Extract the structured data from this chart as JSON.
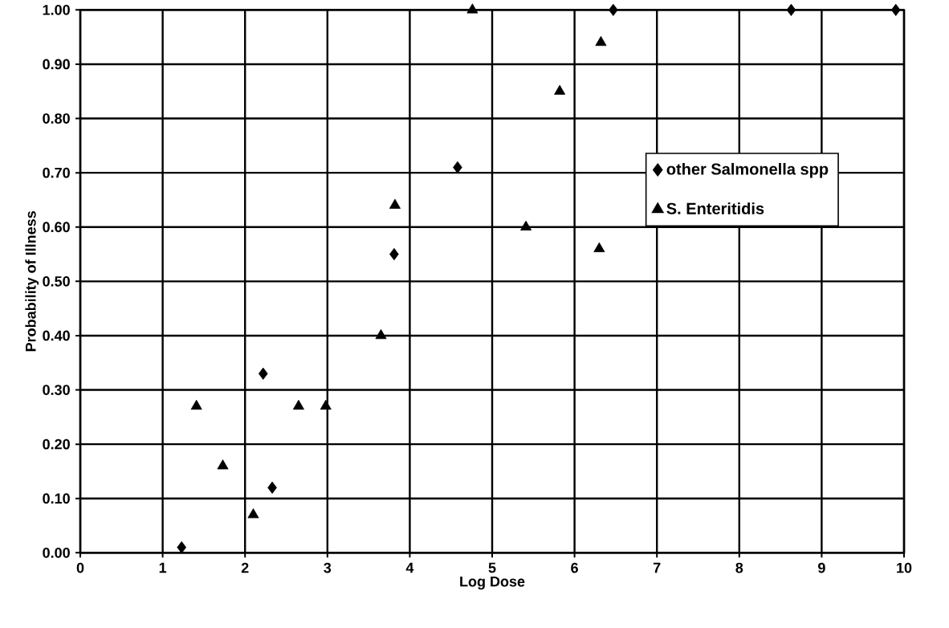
{
  "chart_data": {
    "type": "scatter",
    "xlabel": "Log Dose",
    "ylabel": "Probability of Illness",
    "xlim": [
      0,
      10
    ],
    "ylim": [
      0,
      1
    ],
    "xticks": [
      0,
      1,
      2,
      3,
      4,
      5,
      6,
      7,
      8,
      9,
      10
    ],
    "yticks": [
      {
        "value": 0,
        "label": "0.00"
      },
      {
        "value": 0.1,
        "label": "0.10"
      },
      {
        "value": 0.2,
        "label": "0.20"
      },
      {
        "value": 0.3,
        "label": "0.30"
      },
      {
        "value": 0.4,
        "label": "0.40"
      },
      {
        "value": 0.5,
        "label": "0.50"
      },
      {
        "value": 0.6,
        "label": "0.60"
      },
      {
        "value": 0.7,
        "label": "0.70"
      },
      {
        "value": 0.8,
        "label": "0.80"
      },
      {
        "value": 0.9,
        "label": "0.90"
      },
      {
        "value": 1,
        "label": "1.00"
      }
    ],
    "grid": true,
    "legend": "right",
    "series": [
      {
        "name": "other Salmonella spp",
        "color": "#000000",
        "marker": "diamond",
        "x": [
          1.23,
          2.22,
          2.33,
          3.81,
          4.58,
          6.47,
          8.63,
          9.9
        ],
        "values": [
          0.01,
          0.33,
          0.12,
          0.55,
          0.71,
          1.0,
          1.0,
          1.0
        ]
      },
      {
        "name": "S. Enteritidis",
        "color": "#000000",
        "marker": "triangle",
        "x": [
          1.41,
          1.73,
          2.1,
          2.65,
          2.98,
          3.65,
          3.82,
          4.76,
          5.41,
          5.82,
          6.32,
          6.3
        ],
        "values": [
          0.27,
          0.16,
          0.07,
          0.27,
          0.27,
          0.4,
          0.64,
          1.0,
          0.6,
          0.85,
          0.94,
          0.56
        ]
      }
    ]
  }
}
